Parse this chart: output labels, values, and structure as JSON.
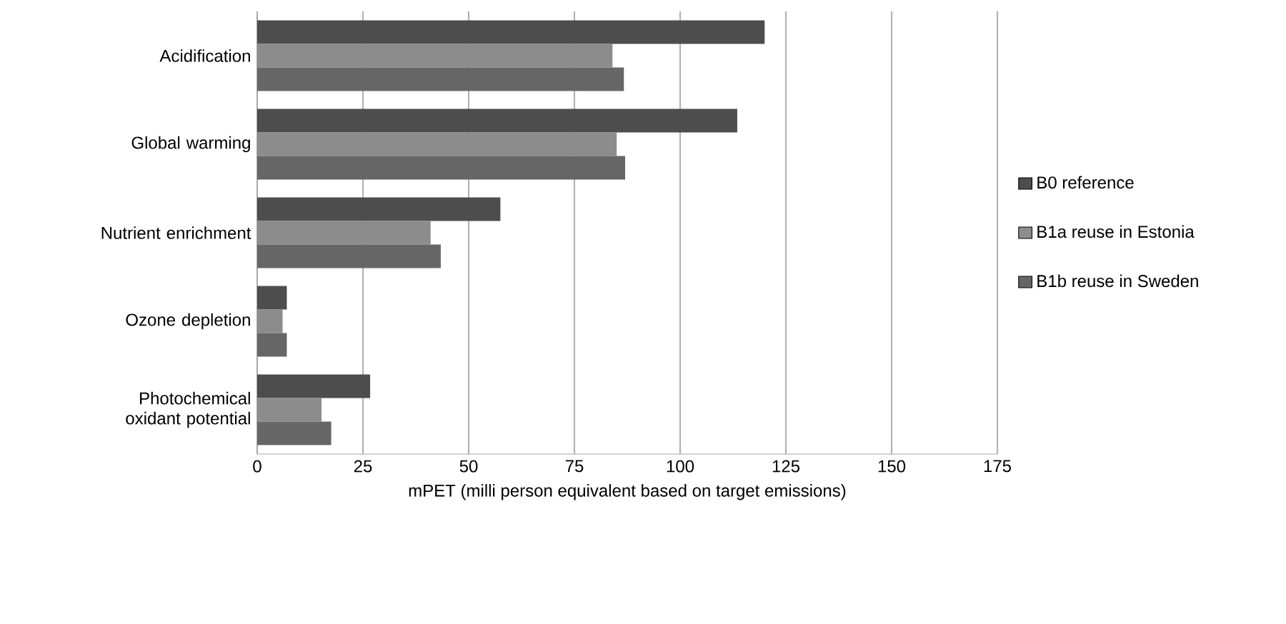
{
  "chart_data": {
    "type": "bar",
    "orientation": "horizontal",
    "xlabel": "mPET (milli person equivalent based on target emissions)",
    "categories": [
      "Acidification",
      "Global warming",
      "Nutrient enrichment",
      "Ozone depletion",
      "Photochemical oxidant potential"
    ],
    "series": [
      {
        "name": "B0 reference",
        "color": "#4d4d4d",
        "values": [
          120,
          113.5,
          57.5,
          7,
          26.7
        ]
      },
      {
        "name": "B1a reuse in Estonia",
        "color": "#8c8c8c",
        "values": [
          84,
          85,
          41,
          6,
          15.2
        ]
      },
      {
        "name": "B1b reuse in Sweden",
        "color": "#666666",
        "values": [
          86.7,
          87,
          43.4,
          7,
          17.5
        ]
      }
    ],
    "xlim": [
      0,
      175
    ],
    "xticks": [
      0,
      25,
      50,
      75,
      100,
      125,
      150,
      175
    ],
    "grid": "x",
    "legend": "right"
  }
}
